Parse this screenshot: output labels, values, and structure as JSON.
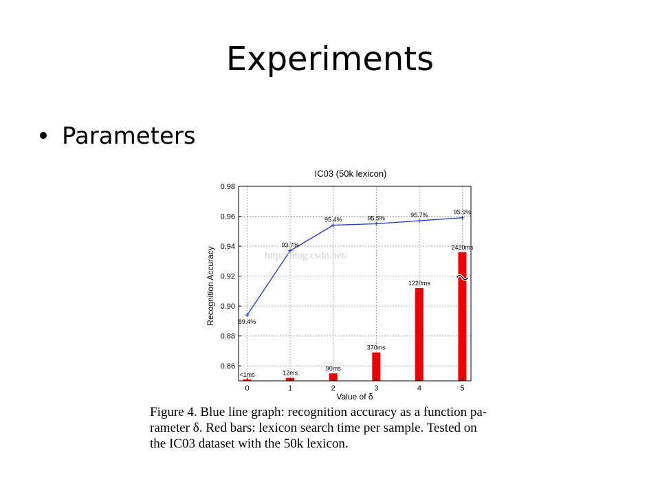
{
  "slide": {
    "title": "Experiments",
    "bullet": "Parameters"
  },
  "watermark": "http://blog.csdn.net/",
  "caption": {
    "line1": "Figure 4. Blue line graph: recognition accuracy as a function pa-",
    "line2": "rameter δ.  Red bars:  lexicon search time per sample.  Tested on",
    "line3": "the IC03 dataset with the 50k lexicon."
  },
  "colors": {
    "line": "#2b3fd0",
    "bars": "#ee0000",
    "grid": "#999999"
  },
  "chart_data": {
    "type": "line",
    "title": "IC03 (50k lexicon)",
    "xlabel": "Value of δ",
    "ylabel": "Recognition Accuracy",
    "x": [
      0,
      1,
      2,
      3,
      4,
      5
    ],
    "xlim": [
      -0.2,
      5.2
    ],
    "ylim": [
      0.85,
      0.98
    ],
    "yticks": [
      0.86,
      0.88,
      0.9,
      0.92,
      0.94,
      0.96,
      0.98
    ],
    "ytick_labels": [
      "0.86",
      "0.88",
      "0.90",
      "0.92",
      "0.94",
      "0.96",
      "0.98"
    ],
    "grid": true,
    "series": [
      {
        "type": "line",
        "values": [
          0.894,
          0.937,
          0.954,
          0.955,
          0.957,
          0.959
        ],
        "labels": [
          "89.4%",
          "93.7%",
          "95.4%",
          "95.5%",
          "95.7%",
          "95.9%"
        ]
      },
      {
        "type": "bar",
        "values": [
          0.851,
          0.852,
          0.855,
          0.869,
          0.912,
          0.936
        ],
        "labels": [
          "<1ms",
          "12ms",
          "90ms",
          "370ms",
          "1220ms",
          "2420ms"
        ],
        "broken_bar_index": 5
      }
    ]
  }
}
